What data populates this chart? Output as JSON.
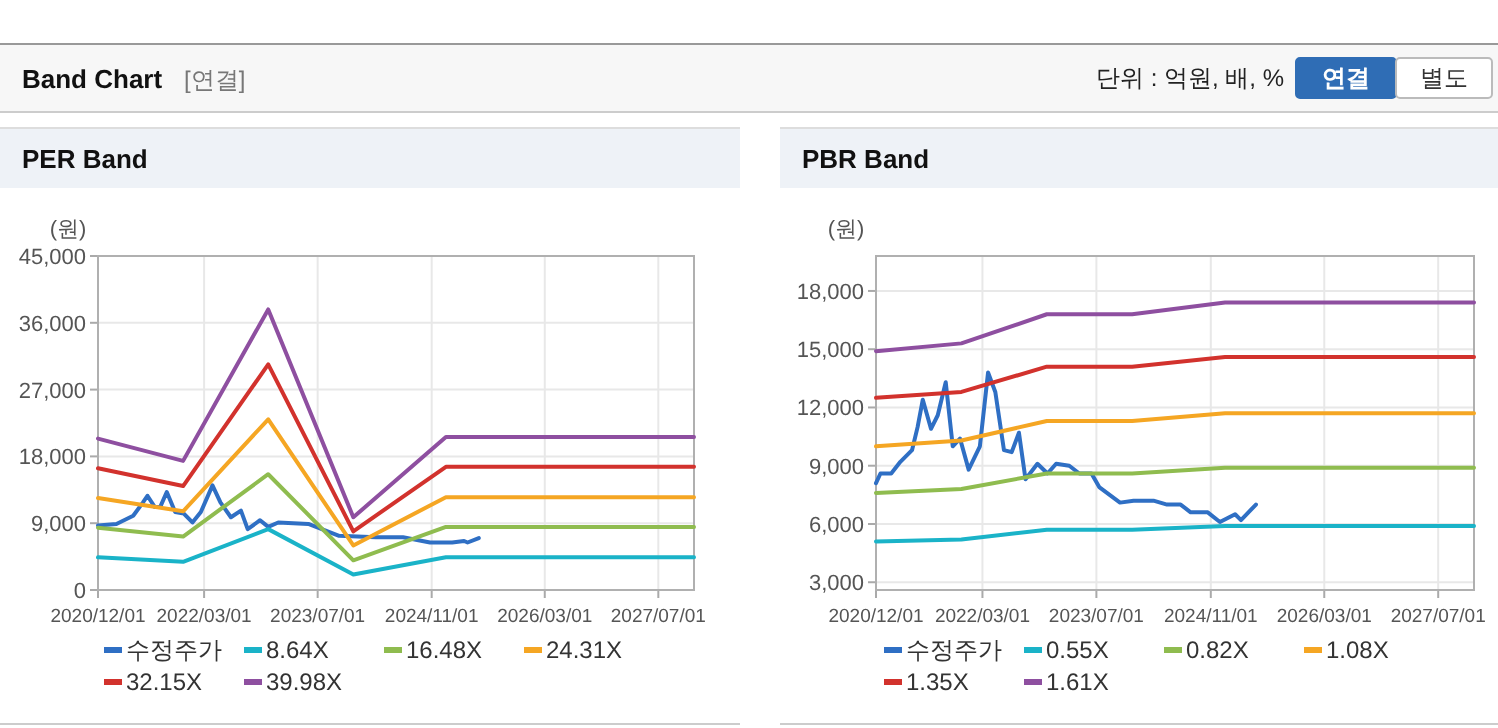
{
  "chart_data": [
    {
      "type": "line",
      "title": "PER Band",
      "ylabel": "(원)",
      "annotations": [
        "Band Chart",
        "[연결]",
        "단위 : 억원, 배, %",
        "연결",
        "별도"
      ],
      "xlim": [
        "2020-12-01",
        "2027-12-01"
      ],
      "xticks": [
        {
          "value": "2020-12-01",
          "label": "2020/12/01"
        },
        {
          "value": "2022-03-01",
          "label": "2022/03/01"
        },
        {
          "value": "2023-07-01",
          "label": "2023/07/01"
        },
        {
          "value": "2024-11-01",
          "label": "2024/11/01"
        },
        {
          "value": "2026-03-01",
          "label": "2026/03/01"
        },
        {
          "value": "2027-07-01",
          "label": "2027/07/01"
        }
      ],
      "ylim": [
        0,
        45000
      ],
      "yticks": [
        0,
        {
          "value": 9000,
          "label": "9,000"
        },
        {
          "value": 18000,
          "label": "18,000"
        },
        {
          "value": 27000,
          "label": "27,000"
        },
        {
          "value": 36000,
          "label": "36,000"
        },
        {
          "value": 45000,
          "label": "45,000"
        }
      ],
      "grid": true,
      "legend": "bottom",
      "marker": "none",
      "line_style": "solid",
      "series": [
        {
          "name": "수정주가",
          "color": "#2f6fc4",
          "x": [
            "2020-12-01",
            "2021-02-18",
            "2021-05-01",
            "2021-06-12",
            "2021-07-01",
            "2021-08-01",
            "2021-08-25",
            "2021-09-22",
            "2021-10-28",
            "2021-12-04",
            "2022-01-10",
            "2022-02-15",
            "2022-04-06",
            "2022-05-10",
            "2022-06-24",
            "2022-08-06",
            "2022-09-04",
            "2022-10-27",
            "2022-12-01",
            "2023-01-13",
            "2023-05-22",
            "2023-07-19",
            "2023-10-01",
            "2024-03-07",
            "2024-07-01",
            "2024-10-25",
            "2025-01-28",
            "2025-03-20",
            "2025-04-04",
            "2025-05-22"
          ],
          "values": [
            8700,
            8900,
            10000,
            11800,
            12700,
            11200,
            11200,
            13200,
            10500,
            10300,
            9100,
            10500,
            14100,
            11800,
            9800,
            10700,
            8200,
            9400,
            8500,
            9100,
            8900,
            8200,
            7300,
            7100,
            7100,
            6400,
            6400,
            6600,
            6400,
            7000
          ]
        },
        {
          "name": "8.64X",
          "color": "#1ab3c8",
          "x": [
            "2020-12-01",
            "2021-12-01",
            "2022-12-01",
            "2023-12-01",
            "2025-01-01",
            "2027-12-01"
          ],
          "values": [
            4400,
            3800,
            8200,
            2100,
            4400,
            4400
          ]
        },
        {
          "name": "16.48X",
          "color": "#8fbc4f",
          "x": [
            "2020-12-01",
            "2021-12-01",
            "2022-12-01",
            "2023-12-01",
            "2025-01-01",
            "2027-12-01"
          ],
          "values": [
            8400,
            7200,
            15600,
            4000,
            8500,
            8500
          ]
        },
        {
          "name": "24.31X",
          "color": "#f5a623",
          "x": [
            "2020-12-01",
            "2021-12-01",
            "2022-12-01",
            "2023-12-01",
            "2025-01-01",
            "2027-12-01"
          ],
          "values": [
            12400,
            10600,
            23000,
            6000,
            12500,
            12500
          ]
        },
        {
          "name": "32.15X",
          "color": "#d2322d",
          "x": [
            "2020-12-01",
            "2021-12-01",
            "2022-12-01",
            "2023-12-01",
            "2025-01-01",
            "2027-12-01"
          ],
          "values": [
            16400,
            14000,
            30400,
            7900,
            16600,
            16600
          ]
        },
        {
          "name": "39.98X",
          "color": "#8e4fa0",
          "x": [
            "2020-12-01",
            "2021-12-01",
            "2022-12-01",
            "2023-12-01",
            "2025-01-01",
            "2027-12-01"
          ],
          "values": [
            20400,
            17400,
            37800,
            9800,
            20600,
            20600
          ]
        }
      ]
    },
    {
      "type": "line",
      "title": "PBR Band",
      "ylabel": "(원)",
      "xlim": [
        "2020-12-01",
        "2027-12-01"
      ],
      "xticks": [
        {
          "value": "2020-12-01",
          "label": "2020/12/01"
        },
        {
          "value": "2022-03-01",
          "label": "2022/03/01"
        },
        {
          "value": "2023-07-01",
          "label": "2023/07/01"
        },
        {
          "value": "2024-11-01",
          "label": "2024/11/01"
        },
        {
          "value": "2026-03-01",
          "label": "2026/03/01"
        },
        {
          "value": "2027-07-01",
          "label": "2027/07/01"
        }
      ],
      "ylim": [
        2600,
        19800
      ],
      "yticks": [
        {
          "value": 3000,
          "label": "3,000"
        },
        {
          "value": 6000,
          "label": "6,000"
        },
        {
          "value": 9000,
          "label": "9,000"
        },
        {
          "value": 12000,
          "label": "12,000"
        },
        {
          "value": 15000,
          "label": "15,000"
        },
        {
          "value": 18000,
          "label": "18,000"
        }
      ],
      "grid": true,
      "legend": "bottom",
      "marker": "none",
      "line_style": "solid",
      "series": [
        {
          "name": "수정주가",
          "color": "#2f6fc4",
          "x": [
            "2020-12-01",
            "2020-12-20",
            "2021-02-04",
            "2021-03-15",
            "2021-05-04",
            "2021-05-28",
            "2021-06-19",
            "2021-07-24",
            "2021-08-22",
            "2021-09-25",
            "2021-10-25",
            "2021-11-25",
            "2022-01-01",
            "2022-02-18",
            "2022-03-25",
            "2022-04-25",
            "2022-06-01",
            "2022-07-04",
            "2022-08-04",
            "2022-09-01",
            "2022-10-22",
            "2022-12-04",
            "2023-01-10",
            "2023-03-07",
            "2023-04-19",
            "2023-06-10",
            "2023-07-13",
            "2023-10-10",
            "2023-12-07",
            "2024-03-01",
            "2024-04-28",
            "2024-06-25",
            "2024-08-07",
            "2024-10-19",
            "2024-12-10",
            "2025-02-13",
            "2025-03-10",
            "2025-05-13"
          ],
          "values": [
            8100,
            8600,
            8600,
            9200,
            9800,
            11000,
            12400,
            10900,
            11600,
            13300,
            10000,
            10400,
            8800,
            10000,
            13800,
            12800,
            9800,
            9700,
            10700,
            8300,
            9100,
            8600,
            9100,
            9000,
            8600,
            8600,
            7900,
            7100,
            7200,
            7200,
            7000,
            7000,
            6600,
            6600,
            6100,
            6500,
            6200,
            7000
          ]
        },
        {
          "name": "0.55X",
          "color": "#1ab3c8",
          "x": [
            "2020-12-01",
            "2021-12-01",
            "2022-12-01",
            "2023-12-01",
            "2025-01-01",
            "2027-12-01"
          ],
          "values": [
            5100,
            5200,
            5700,
            5700,
            5900,
            5900
          ]
        },
        {
          "name": "0.82X",
          "color": "#8fbc4f",
          "x": [
            "2020-12-01",
            "2021-12-01",
            "2022-12-01",
            "2023-12-01",
            "2025-01-01",
            "2027-12-01"
          ],
          "values": [
            7600,
            7800,
            8600,
            8600,
            8900,
            8900
          ]
        },
        {
          "name": "1.08X",
          "color": "#f5a623",
          "x": [
            "2020-12-01",
            "2021-12-01",
            "2022-12-01",
            "2023-12-01",
            "2025-01-01",
            "2027-12-01"
          ],
          "values": [
            10000,
            10300,
            11300,
            11300,
            11700,
            11700
          ]
        },
        {
          "name": "1.35X",
          "color": "#d2322d",
          "x": [
            "2020-12-01",
            "2021-12-01",
            "2022-12-01",
            "2023-12-01",
            "2025-01-01",
            "2027-12-01"
          ],
          "values": [
            12500,
            12800,
            14100,
            14100,
            14600,
            14600
          ]
        },
        {
          "name": "1.61X",
          "color": "#8e4fa0",
          "x": [
            "2020-12-01",
            "2021-12-01",
            "2022-12-01",
            "2023-12-01",
            "2025-01-01",
            "2027-12-01"
          ],
          "values": [
            14900,
            15300,
            16800,
            16800,
            17400,
            17400
          ]
        }
      ]
    }
  ]
}
